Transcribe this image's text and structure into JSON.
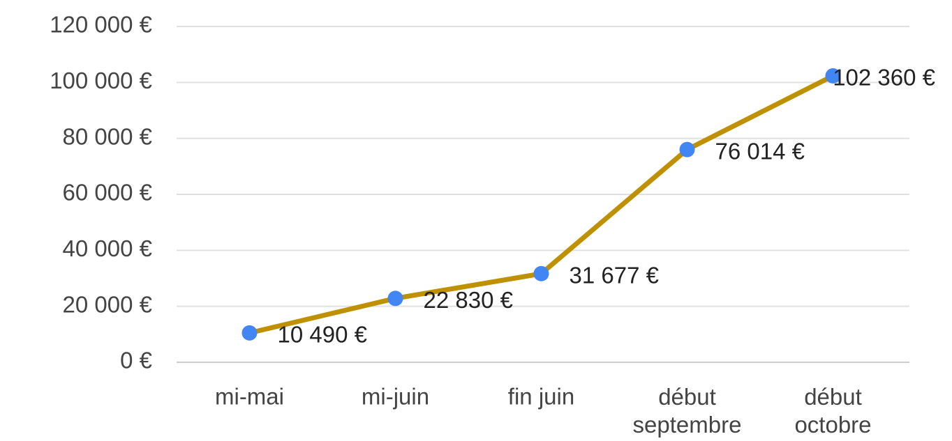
{
  "chart_data": {
    "type": "line",
    "categories": [
      "mi-mai",
      "mi-juin",
      "fin juin",
      "début\nseptembre",
      "début\noctobre"
    ],
    "series": [
      {
        "color": "#bf9000",
        "marker_color": "#4285f4",
        "values": [
          10490,
          22830,
          31677,
          76014,
          102360
        ],
        "value_labels": [
          "10 490 €",
          "22 830 €",
          "31 677 €",
          "76 014 €",
          "102 360 €"
        ]
      }
    ],
    "ylim": [
      0,
      120000
    ],
    "yticks": [
      {
        "value": 0,
        "label": "0 €"
      },
      {
        "value": 20000,
        "label": "20 000 €"
      },
      {
        "value": 40000,
        "label": "40 000 €"
      },
      {
        "value": 60000,
        "label": "60 000 €"
      },
      {
        "value": 80000,
        "label": "80 000 €"
      },
      {
        "value": 100000,
        "label": "100 000 €"
      },
      {
        "value": 120000,
        "label": "120 000 €"
      }
    ],
    "grid": true
  }
}
